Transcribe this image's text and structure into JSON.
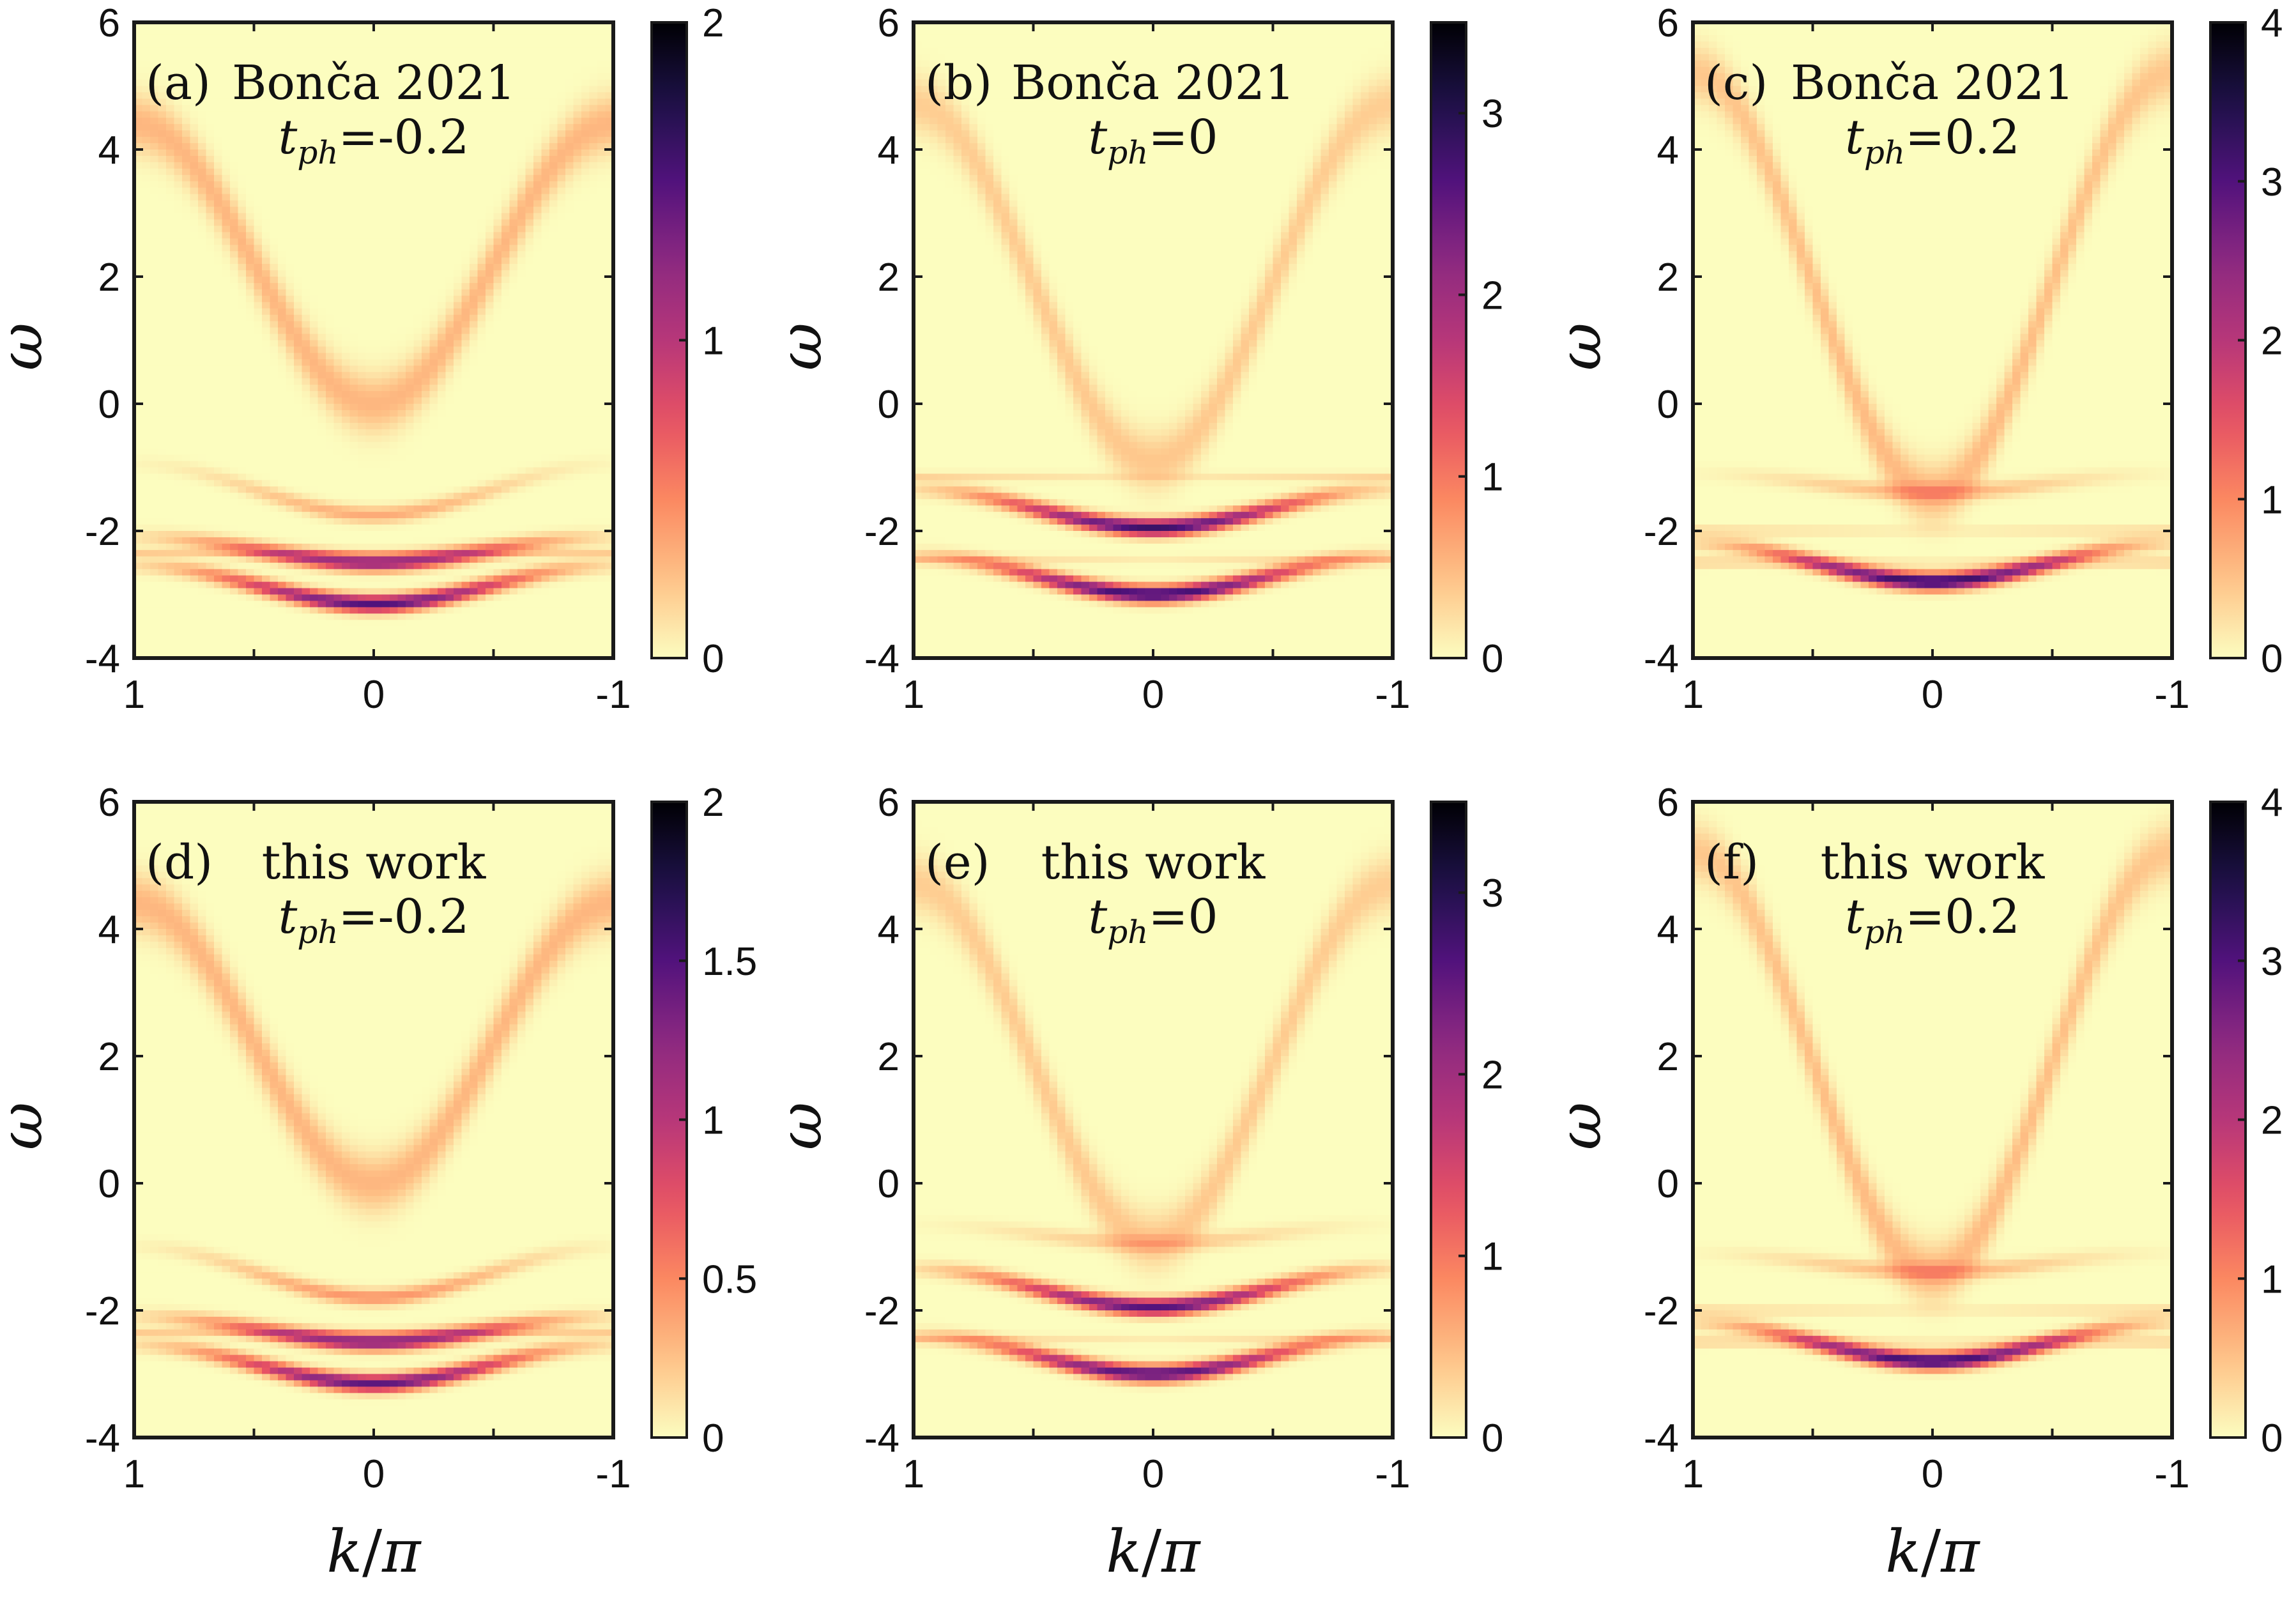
{
  "chart_data": [
    {
      "id": "a",
      "type": "heatmap",
      "panel_label": "(a)",
      "source": "Bonča 2021",
      "tph_prefix": "t",
      "tph_sub": "ph",
      "tph_value": "=-0.2",
      "peak_value": 2.0,
      "xlim": [
        1,
        -1
      ],
      "ylim": [
        -4,
        6
      ],
      "xticks": [
        "1",
        "0",
        "-1"
      ],
      "yticks": [
        "6",
        "4",
        "2",
        "0",
        "-2",
        "-4"
      ],
      "colorbar": {
        "range": [
          0,
          2
        ],
        "ticks": [
          {
            "value": 0,
            "label": "0"
          },
          {
            "value": 1,
            "label": "1"
          },
          {
            "value": 2,
            "label": "2"
          }
        ]
      },
      "bands": [
        {
          "kind": "wide",
          "center_k0": 0.0,
          "amplitude": 2.2,
          "intensity_center": 0.3,
          "intensity_edge": 0.3
        },
        {
          "kind": "flat",
          "energy": -1.75,
          "curvature": 0.8,
          "intensity": 0.35
        },
        {
          "kind": "flat",
          "energy": -2.5,
          "curvature": 0.4,
          "intensity": 1.25
        },
        {
          "kind": "flat",
          "energy": -3.15,
          "curvature": 0.6,
          "intensity": 1.5
        },
        {
          "kind": "flat",
          "energy": -2.35,
          "curvature": 0.0,
          "intensity": 0.2
        }
      ]
    },
    {
      "id": "b",
      "type": "heatmap",
      "panel_label": "(b)",
      "source": "Bonča 2021",
      "tph_prefix": "t",
      "tph_sub": "ph",
      "tph_value": "=0",
      "peak_value": 3.5,
      "xlim": [
        1,
        -1
      ],
      "ylim": [
        -4,
        6
      ],
      "xticks": [
        "1",
        "0",
        "-1"
      ],
      "yticks": [
        "6",
        "4",
        "2",
        "0",
        "-2",
        "-4"
      ],
      "colorbar": {
        "range": [
          0,
          3.5
        ],
        "ticks": [
          {
            "value": 0,
            "label": "0"
          },
          {
            "value": 1,
            "label": "1"
          },
          {
            "value": 2,
            "label": "2"
          },
          {
            "value": 3,
            "label": "3"
          }
        ]
      },
      "bands": [
        {
          "kind": "wide",
          "center_k0": -0.9,
          "amplitude": 2.8,
          "intensity_center": 0.4,
          "intensity_edge": 0.35
        },
        {
          "kind": "flat",
          "energy": -1.15,
          "curvature": 0.0,
          "intensity": 0.3
        },
        {
          "kind": "flat",
          "energy": -1.95,
          "curvature": 0.6,
          "intensity": 2.8
        },
        {
          "kind": "flat",
          "energy": -3.0,
          "curvature": 0.6,
          "intensity": 2.9
        },
        {
          "kind": "flat",
          "energy": -2.45,
          "curvature": 0.0,
          "intensity": 0.3
        }
      ]
    },
    {
      "id": "c",
      "type": "heatmap",
      "panel_label": "(c)",
      "source": "Bonča 2021",
      "tph_prefix": "t",
      "tph_sub": "ph",
      "tph_value": "=0.2",
      "peak_value": 4.0,
      "xlim": [
        1,
        -1
      ],
      "ylim": [
        -4,
        6
      ],
      "xticks": [
        "1",
        "0",
        "-1"
      ],
      "yticks": [
        "6",
        "4",
        "2",
        "0",
        "-2",
        "-4"
      ],
      "colorbar": {
        "range": [
          0,
          4
        ],
        "ticks": [
          {
            "value": 0,
            "label": "0"
          },
          {
            "value": 1,
            "label": "1"
          },
          {
            "value": 2,
            "label": "2"
          },
          {
            "value": 3,
            "label": "3"
          },
          {
            "value": 4,
            "label": "4"
          }
        ]
      },
      "bands": [
        {
          "kind": "wide",
          "center_k0": -1.4,
          "amplitude": 3.3,
          "intensity_center": 0.6,
          "intensity_edge": 0.45
        },
        {
          "kind": "flat",
          "energy": -1.4,
          "curvature": 0.3,
          "intensity": 0.6
        },
        {
          "kind": "flat",
          "energy": -2.0,
          "curvature": 0.0,
          "intensity": 0.35
        },
        {
          "kind": "flat",
          "energy": -2.8,
          "curvature": 0.6,
          "intensity": 3.4
        },
        {
          "kind": "flat",
          "energy": -2.5,
          "curvature": 0.0,
          "intensity": 0.4
        }
      ]
    },
    {
      "id": "d",
      "type": "heatmap",
      "panel_label": "(d)",
      "source": "this work",
      "tph_prefix": "t",
      "tph_sub": "ph",
      "tph_value": "=-0.2",
      "peak_value": 2.0,
      "xlim": [
        1,
        -1
      ],
      "ylim": [
        -4,
        6
      ],
      "xticks": [
        "1",
        "0",
        "-1"
      ],
      "yticks": [
        "6",
        "4",
        "2",
        "0",
        "-2",
        "-4"
      ],
      "colorbar": {
        "range": [
          0,
          2
        ],
        "ticks": [
          {
            "value": 0,
            "label": "0"
          },
          {
            "value": 0.5,
            "label": "0.5"
          },
          {
            "value": 1,
            "label": "1"
          },
          {
            "value": 1.5,
            "label": "1.5"
          },
          {
            "value": 2,
            "label": "2"
          }
        ]
      },
      "bands": [
        {
          "kind": "wide",
          "center_k0": 0.0,
          "amplitude": 2.2,
          "intensity_center": 0.3,
          "intensity_edge": 0.3
        },
        {
          "kind": "flat",
          "energy": -1.8,
          "curvature": 0.8,
          "intensity": 0.45
        },
        {
          "kind": "flat",
          "energy": -2.5,
          "curvature": 0.4,
          "intensity": 1.3
        },
        {
          "kind": "flat",
          "energy": -3.15,
          "curvature": 0.6,
          "intensity": 1.45
        },
        {
          "kind": "flat",
          "energy": -2.35,
          "curvature": 0.0,
          "intensity": 0.2
        }
      ]
    },
    {
      "id": "e",
      "type": "heatmap",
      "panel_label": "(e)",
      "source": "this work",
      "tph_prefix": "t",
      "tph_sub": "ph",
      "tph_value": "=0",
      "peak_value": 3.5,
      "xlim": [
        1,
        -1
      ],
      "ylim": [
        -4,
        6
      ],
      "xticks": [
        "1",
        "0",
        "-1"
      ],
      "yticks": [
        "6",
        "4",
        "2",
        "0",
        "-2",
        "-4"
      ],
      "colorbar": {
        "range": [
          0,
          3.5
        ],
        "ticks": [
          {
            "value": 0,
            "label": "0"
          },
          {
            "value": 1,
            "label": "1"
          },
          {
            "value": 2,
            "label": "2"
          },
          {
            "value": 3,
            "label": "3"
          }
        ]
      },
      "bands": [
        {
          "kind": "wide",
          "center_k0": -0.9,
          "amplitude": 2.8,
          "intensity_center": 0.4,
          "intensity_edge": 0.35
        },
        {
          "kind": "flat",
          "energy": -0.95,
          "curvature": 0.3,
          "intensity": 0.4
        },
        {
          "kind": "flat",
          "energy": -1.95,
          "curvature": 0.6,
          "intensity": 2.6
        },
        {
          "kind": "flat",
          "energy": -3.0,
          "curvature": 0.6,
          "intensity": 2.7
        },
        {
          "kind": "flat",
          "energy": -2.45,
          "curvature": 0.0,
          "intensity": 0.3
        }
      ]
    },
    {
      "id": "f",
      "type": "heatmap",
      "panel_label": "(f)",
      "source": "this work",
      "tph_prefix": "t",
      "tph_sub": "ph",
      "tph_value": "=0.2",
      "peak_value": 4.0,
      "xlim": [
        1,
        -1
      ],
      "ylim": [
        -4,
        6
      ],
      "xticks": [
        "1",
        "0",
        "-1"
      ],
      "yticks": [
        "6",
        "4",
        "2",
        "0",
        "-2",
        "-4"
      ],
      "colorbar": {
        "range": [
          0,
          4
        ],
        "ticks": [
          {
            "value": 0,
            "label": "0"
          },
          {
            "value": 1,
            "label": "1"
          },
          {
            "value": 2,
            "label": "2"
          },
          {
            "value": 3,
            "label": "3"
          },
          {
            "value": 4,
            "label": "4"
          }
        ]
      },
      "bands": [
        {
          "kind": "wide",
          "center_k0": -1.4,
          "amplitude": 3.3,
          "intensity_center": 0.6,
          "intensity_edge": 0.45
        },
        {
          "kind": "flat",
          "energy": -1.4,
          "curvature": 0.3,
          "intensity": 0.6
        },
        {
          "kind": "flat",
          "energy": -2.0,
          "curvature": 0.0,
          "intensity": 0.35
        },
        {
          "kind": "flat",
          "energy": -2.8,
          "curvature": 0.6,
          "intensity": 3.3
        },
        {
          "kind": "flat",
          "energy": -2.5,
          "curvature": 0.0,
          "intensity": 0.4
        }
      ]
    }
  ],
  "axes": {
    "ylabel": "ω",
    "xlabel_k": "k",
    "xlabel_sep": "/",
    "xlabel_pi": "π"
  },
  "colormap": [
    "#fcfdbf",
    "#fec287",
    "#fb8861",
    "#e65164",
    "#b73779",
    "#8c2981",
    "#51127c",
    "#1d1147",
    "#000004"
  ]
}
